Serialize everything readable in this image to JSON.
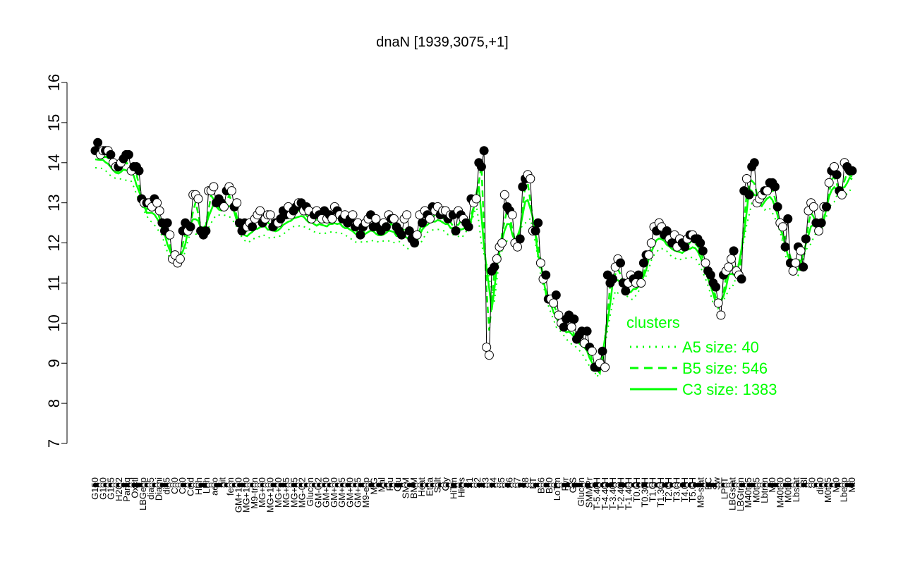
{
  "chart_data": {
    "type": "scatter",
    "title": "dnaN [1939,3075,+1]",
    "xlabel": "",
    "ylabel": "",
    "ylim": [
      7,
      16
    ],
    "yticks": [
      7,
      8,
      9,
      10,
      11,
      12,
      13,
      14,
      15,
      16
    ],
    "grid": false,
    "legend_position": "right",
    "x_tick_labels": [
      "G150",
      "G180",
      "G135",
      "H2O2",
      "Paraq",
      "Oxctl",
      "LBGexp",
      "dia15",
      "Diami",
      "dia5",
      "C90",
      "C30",
      "Cold",
      "HPh",
      "LPh",
      "aero",
      "nit",
      "ferm",
      "GM+150",
      "MG+150",
      "M9-tran",
      "MG+90",
      "MG+120",
      "MG+60",
      "MG+45",
      "MG+25",
      "MG-0.2",
      "Glucon",
      "GM-0.2",
      "GM+90",
      "GM+60",
      "GM+45",
      "GM+30",
      "GM+15",
      "M9-exp",
      "M/G",
      "Mal",
      "Fru",
      "Glu",
      "SMM",
      "BMM",
      "Heat",
      "Etha",
      "Salt",
      "Gly",
      "HiTm",
      "HiOs",
      "S1",
      "S2",
      "S3",
      "S4",
      "S5",
      "S6",
      "S7",
      "S8",
      "BT",
      "B36",
      "B60",
      "LoTm",
      "Pyr",
      "G/S",
      "Glucon",
      "SMMPr",
      "T-5.40H",
      "T-4.40H",
      "T-3.40H",
      "T-2.40H",
      "T-1.40H",
      "T0.0H",
      "T0.30H",
      "T1.0H",
      "T1.30H",
      "T2.0H",
      "T3.0H",
      "T4.0H",
      "T5.0H",
      "M9-stat",
      "BC",
      "Sw",
      "LPhT",
      "LBGstat",
      "LBGtran",
      "M40t45",
      "M0t45",
      "Lbtran",
      "Mt0",
      "M40t90",
      "M0t90",
      "Lbstat",
      "Bl",
      "S0",
      "dia0",
      "M0t45",
      "Mt0",
      "Lbexp",
      "Mt0"
    ],
    "legend": {
      "title": "clusters",
      "entries": [
        {
          "label": "A5 size: 40",
          "style": "dotted"
        },
        {
          "label": "B5 size: 546",
          "style": "dashed"
        },
        {
          "label": "C3 size: 1383",
          "style": "solid"
        }
      ]
    },
    "colors": {
      "lines": "#00ff00",
      "points_filled": "#000000",
      "points_open": "#ffffff",
      "axis": "#000000"
    },
    "series": [
      {
        "name": "dnaN",
        "role": "points",
        "values": [
          14.3,
          14.5,
          14.2,
          14.3,
          14.3,
          14.3,
          14.2,
          14.0,
          13.9,
          13.9,
          14.0,
          14.1,
          14.2,
          14.2,
          13.8,
          13.9,
          13.9,
          13.8,
          13.1,
          13.0,
          13.0,
          13.0,
          12.9,
          13.1,
          13.0,
          12.8,
          12.5,
          12.3,
          12.5,
          12.2,
          11.6,
          11.7,
          11.5,
          11.6,
          12.3,
          12.5,
          12.3,
          12.4,
          13.2,
          13.2,
          13.1,
          12.3,
          12.2,
          12.3,
          13.3,
          13.3,
          13.4,
          13.0,
          13.1,
          13.0,
          12.9,
          13.3,
          13.4,
          13.3,
          12.9,
          13.0,
          12.5,
          12.3,
          12.5,
          12.4,
          12.5,
          12.4,
          12.6,
          12.7,
          12.8,
          12.5,
          12.6,
          12.7,
          12.7,
          12.4,
          12.5,
          12.5,
          12.6,
          12.8,
          12.7,
          12.9,
          12.7,
          12.8,
          12.9,
          13.0,
          13.0,
          12.8,
          12.9,
          12.8,
          12.6,
          12.7,
          12.8,
          12.7,
          12.6,
          12.8,
          12.6,
          12.7,
          12.6,
          12.9,
          12.8,
          12.7,
          12.6,
          12.7,
          12.5,
          12.6,
          12.7,
          12.4,
          12.5,
          12.2,
          12.4,
          12.5,
          12.6,
          12.7,
          12.4,
          12.6,
          12.4,
          12.3,
          12.5,
          12.4,
          12.7,
          12.6,
          12.6,
          12.4,
          12.3,
          12.2,
          12.6,
          12.7,
          12.3,
          12.1,
          12.0,
          12.2,
          12.7,
          12.5,
          12.8,
          12.7,
          12.6,
          12.9,
          12.8,
          12.9,
          12.7,
          12.8,
          12.8,
          12.6,
          12.7,
          12.7,
          12.3,
          12.8,
          12.7,
          12.6,
          12.5,
          12.4,
          13.1,
          13.0,
          13.1,
          14.0,
          13.9,
          14.3,
          9.4,
          9.2,
          11.3,
          11.4,
          11.6,
          11.9,
          12.0,
          13.2,
          12.9,
          12.8,
          12.7,
          12.0,
          11.9,
          12.1,
          13.4,
          13.6,
          13.7,
          13.6,
          12.3,
          12.3,
          12.5,
          11.5,
          11.1,
          11.2,
          10.6,
          10.6,
          10.5,
          10.7,
          10.2,
          10.0,
          9.9,
          10.1,
          10.2,
          9.9,
          10.1,
          9.6,
          9.7,
          9.8,
          9.5,
          9.8,
          9.4,
          9.3,
          8.9,
          8.9,
          9.0,
          9.3,
          8.9,
          11.2,
          11.0,
          11.1,
          11.4,
          11.6,
          11.5,
          11.0,
          10.8,
          11.0,
          11.2,
          11.1,
          11.0,
          11.2,
          11.0,
          11.5,
          11.7,
          11.7,
          12.0,
          12.4,
          12.3,
          12.5,
          12.4,
          12.2,
          12.3,
          12.1,
          12.0,
          12.2,
          11.9,
          12.1,
          12.0,
          11.9,
          12.1,
          12.2,
          12.2,
          12.1,
          12.1,
          12.0,
          11.8,
          11.5,
          11.3,
          11.2,
          11.0,
          10.9,
          10.5,
          10.2,
          11.2,
          11.3,
          11.4,
          11.6,
          11.8,
          11.3,
          11.2,
          11.1,
          13.3,
          13.6,
          13.2,
          13.9,
          14.0,
          13.0,
          13.1,
          13.2,
          13.3,
          13.3,
          13.5,
          13.5,
          13.4,
          12.9,
          12.5,
          12.4,
          11.9,
          12.6,
          11.5,
          11.3,
          11.5,
          11.9,
          11.8,
          11.4,
          12.1,
          12.8,
          13.0,
          12.9,
          12.5,
          12.3,
          12.5,
          12.9,
          12.9,
          13.5,
          13.8,
          13.9,
          13.7,
          13.3,
          13.2,
          14.0,
          13.9,
          13.8,
          13.8
        ],
        "filled": [
          1,
          1,
          0,
          0,
          1,
          0,
          1,
          0,
          0,
          1,
          0,
          1,
          1,
          1,
          0,
          1,
          1,
          1,
          1,
          0,
          1,
          0,
          0,
          1,
          0,
          0,
          1,
          1,
          1,
          0,
          0,
          0,
          0,
          0,
          1,
          1,
          0,
          1,
          0,
          0,
          0,
          1,
          1,
          1,
          0,
          0,
          0,
          1,
          1,
          1,
          0,
          1,
          0,
          0,
          1,
          0,
          1,
          1,
          1,
          0,
          0,
          1,
          0,
          0,
          0,
          1,
          0,
          0,
          0,
          1,
          1,
          0,
          1,
          1,
          1,
          0,
          0,
          1,
          1,
          0,
          1,
          0,
          1,
          0,
          0,
          1,
          0,
          1,
          0,
          1,
          0,
          1,
          0,
          0,
          1,
          0,
          1,
          0,
          1,
          1,
          0,
          1,
          0,
          1,
          1,
          0,
          0,
          1,
          1,
          0,
          1,
          1,
          0,
          1,
          0,
          1,
          0,
          1,
          1,
          1,
          0,
          0,
          1,
          1,
          1,
          0,
          0,
          1,
          0,
          1,
          0,
          1,
          0,
          0,
          1,
          0,
          0,
          1,
          0,
          1,
          1,
          0,
          1,
          0,
          1,
          1,
          1,
          0,
          0,
          1,
          1,
          1,
          0,
          0,
          1,
          1,
          0,
          0,
          0,
          0,
          1,
          1,
          0,
          0,
          0,
          1,
          1,
          1,
          0,
          0,
          0,
          1,
          1,
          0,
          0,
          1,
          1,
          0,
          0,
          1,
          0,
          0,
          1,
          1,
          1,
          0,
          1,
          1,
          1,
          1,
          0,
          1,
          1,
          0,
          1,
          1,
          0,
          1,
          0,
          1,
          1,
          1,
          0,
          0,
          1,
          1,
          1,
          0,
          0,
          1,
          0,
          1,
          0,
          1,
          1,
          0,
          0,
          0,
          1,
          0,
          0,
          1,
          1,
          0,
          1,
          0,
          0,
          0,
          1,
          1,
          0,
          1,
          0,
          1,
          1,
          1,
          1,
          0,
          1,
          1,
          1,
          1,
          0,
          0,
          1,
          0,
          0,
          0,
          1,
          0,
          0,
          1,
          1,
          0,
          1,
          1,
          1,
          0,
          0,
          0,
          1,
          0,
          1,
          1,
          1,
          1,
          0,
          0,
          1,
          1,
          1,
          0,
          0,
          1,
          0,
          1,
          1,
          0,
          0,
          0,
          1,
          0,
          1,
          0,
          1,
          0,
          1,
          0,
          1,
          1,
          0,
          0,
          1,
          1,
          1,
          0,
          1,
          1,
          1,
          0,
          0,
          1,
          0,
          1,
          0,
          1
        ]
      }
    ]
  }
}
